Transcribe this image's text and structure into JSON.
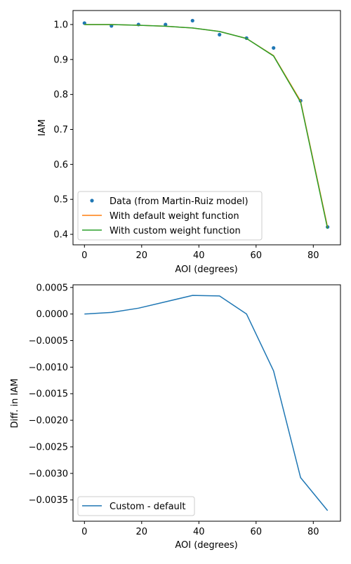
{
  "colors": {
    "data_points": "#1f77b4",
    "default_weight": "#ff7f0e",
    "custom_weight": "#2ca02c",
    "diff_line": "#1f77b4",
    "axis": "#000000",
    "background": "#ffffff"
  },
  "chart_data": [
    {
      "type": "line",
      "xlabel": "AOI (degrees)",
      "ylabel": "IAM",
      "xlim": [
        -4,
        89.5
      ],
      "ylim": [
        0.37,
        1.04
      ],
      "xticks": [
        "0",
        "20",
        "40",
        "60",
        "80"
      ],
      "yticks": [
        "0.4",
        "0.5",
        "0.6",
        "0.7",
        "0.8",
        "0.9",
        "1.0"
      ],
      "grid": false,
      "legend_position": "lower-left",
      "series": [
        {
          "name": "Data (from Martin-Ruiz model)",
          "marker": "dot",
          "x": [
            0,
            9.44,
            18.89,
            28.33,
            37.78,
            47.22,
            56.67,
            66.11,
            75.56,
            85.0
          ],
          "y": [
            1.004,
            0.996,
            1.0,
            1.0,
            1.011,
            0.971,
            0.961,
            0.933,
            0.782,
            0.421
          ]
        },
        {
          "name": "With default weight function",
          "marker": "line",
          "x": [
            0,
            9.44,
            18.89,
            28.33,
            37.78,
            47.22,
            56.67,
            66.11,
            75.56,
            85.0
          ],
          "y": [
            1.0,
            1.0,
            0.998,
            0.995,
            0.99,
            0.98,
            0.96,
            0.911,
            0.781,
            0.42
          ]
        },
        {
          "name": "With custom weight function",
          "marker": "line",
          "x": [
            0,
            9.44,
            18.89,
            28.33,
            37.78,
            47.22,
            56.67,
            66.11,
            75.56,
            85.0
          ],
          "y": [
            1.0,
            1.0,
            0.998,
            0.995,
            0.99,
            0.98,
            0.96,
            0.91,
            0.778,
            0.416
          ]
        }
      ]
    },
    {
      "type": "line",
      "xlabel": "AOI (degrees)",
      "ylabel": "Diff. in IAM",
      "xlim": [
        -4,
        89.5
      ],
      "ylim": [
        -0.0039,
        0.00055
      ],
      "xticks": [
        "0",
        "20",
        "40",
        "60",
        "80"
      ],
      "yticks": [
        "0.0005",
        "0.0000",
        "−0.0005",
        "−0.0010",
        "−0.0015",
        "−0.0020",
        "−0.0025",
        "−0.0030",
        "−0.0035"
      ],
      "grid": false,
      "legend_position": "lower-left",
      "series": [
        {
          "name": "Custom - default",
          "marker": "line",
          "x": [
            0,
            9.44,
            18.89,
            28.33,
            37.78,
            47.22,
            56.67,
            66.11,
            75.56,
            85.0
          ],
          "y": [
            0.0,
            3e-05,
            0.00011,
            0.00023,
            0.00035,
            0.00034,
            0.0,
            -0.00107,
            -0.00308,
            -0.0037
          ]
        }
      ]
    }
  ]
}
